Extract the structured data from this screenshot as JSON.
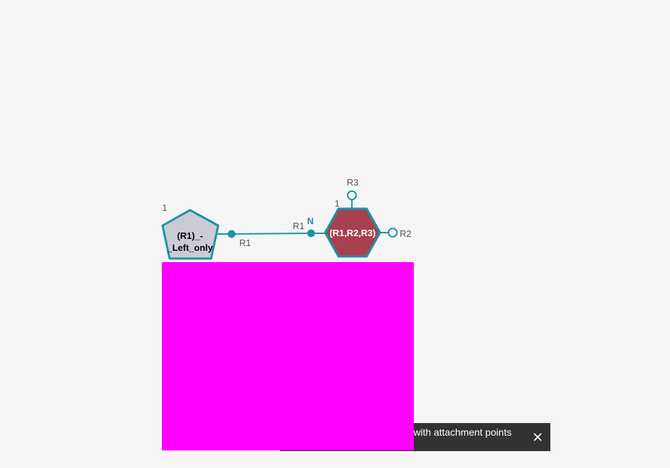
{
  "canvas": {
    "background": "#f5f5f5"
  },
  "monomers": [
    {
      "id": "left-monomer",
      "shape": "pentagon",
      "label_lines": [
        "(R1)_-",
        "_Left_only"
      ],
      "index": "1",
      "fill": "#cbcbd6",
      "stroke": "#1a94a0",
      "text_color": "#000000",
      "attachment_points": [
        {
          "label": "R1",
          "state": "occupied"
        }
      ]
    },
    {
      "id": "right-monomer",
      "shape": "hexagon",
      "label_lines": [
        "(R1,R2,R3)"
      ],
      "index": "1",
      "fill": "#a8414f",
      "stroke": "#1a94a0",
      "text_color": "#ffffff",
      "terminal_label": "N",
      "attachment_points": [
        {
          "label": "R1",
          "state": "occupied"
        },
        {
          "label": "R2",
          "state": "free"
        },
        {
          "label": "R3",
          "state": "free"
        }
      ]
    }
  ],
  "bond": {
    "color": "#1a94a0"
  },
  "colors": {
    "accent": "#1a94a0",
    "free_ap_fill": "#ffffff",
    "occluder": "#ff00ff",
    "toast_bg": "#333333",
    "label_gray": "#555555"
  },
  "toast": {
    "message": "rs with attachment points",
    "close_icon": "close-icon"
  }
}
